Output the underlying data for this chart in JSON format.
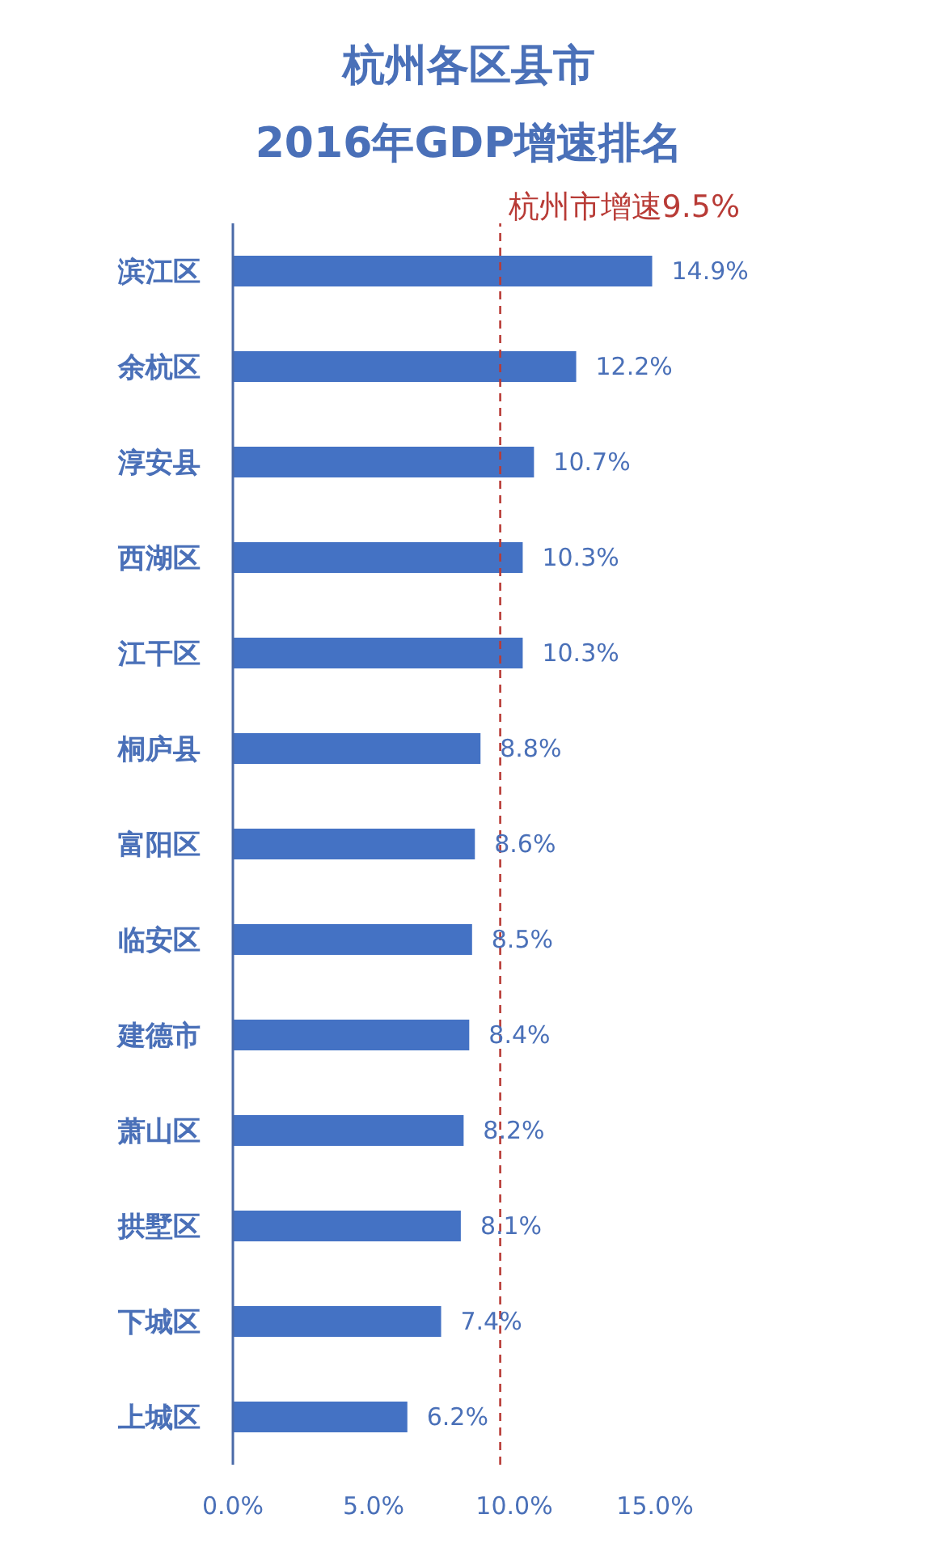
{
  "chart_data": {
    "type": "bar",
    "orientation": "horizontal",
    "title": "杭州各区县市\n2016年GDP增速排名",
    "categories": [
      "滨江区",
      "余杭区",
      "淳安县",
      "西湖区",
      "江干区",
      "桐庐县",
      "富阳区",
      "临安区",
      "建德市",
      "萧山区",
      "拱墅区",
      "下城区",
      "上城区"
    ],
    "values": [
      14.9,
      12.2,
      10.7,
      10.3,
      10.3,
      8.8,
      8.6,
      8.5,
      8.4,
      8.2,
      8.1,
      7.4,
      6.2
    ],
    "color": "#4472c4",
    "value_labels": [
      "14.9%",
      "12.2%",
      "10.7%",
      "10.3%",
      "10.3%",
      "8.8%",
      "8.6%",
      "8.5%",
      "8.4%",
      "8.2%",
      "8.1%",
      "7.4%",
      "6.2%"
    ],
    "xlim": [
      0,
      15
    ],
    "xticks": [
      {
        "value": 0,
        "label": "0.0%"
      },
      {
        "value": 5,
        "label": "5.0%"
      },
      {
        "value": 10,
        "label": "10.0%"
      },
      {
        "value": 15,
        "label": "15.0%"
      }
    ],
    "ref_lines": [
      {
        "axis": "x",
        "value": 9.5,
        "label": "杭州市增速9.5%",
        "color": "#b83b36",
        "line_style": "dashed"
      }
    ]
  }
}
